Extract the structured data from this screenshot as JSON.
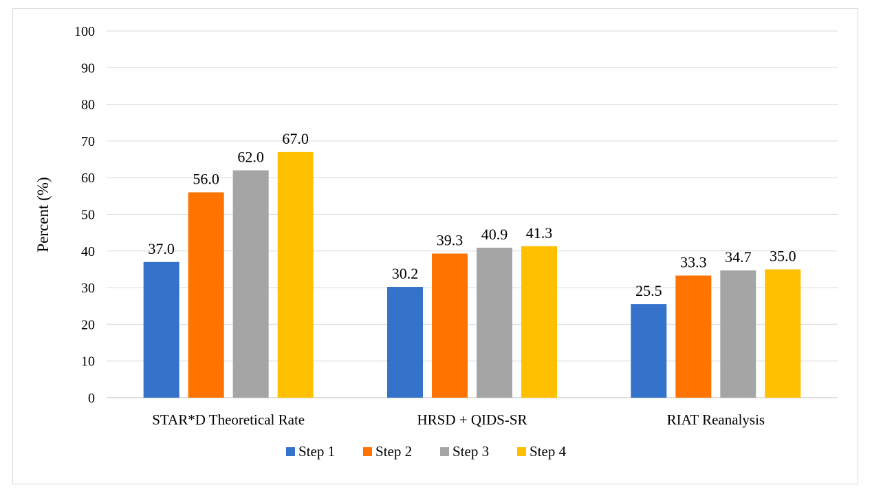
{
  "chart_data": {
    "type": "bar",
    "title": "",
    "xlabel": "",
    "ylabel": "Percent (%)",
    "ylim": [
      0,
      100
    ],
    "yticks": [
      0,
      10,
      20,
      30,
      40,
      50,
      60,
      70,
      80,
      90,
      100
    ],
    "grid": true,
    "legend_position": "bottom",
    "categories": [
      "STAR*D Theoretical Rate",
      "HRSD + QIDS-SR",
      "RIAT Reanalysis"
    ],
    "series": [
      {
        "name": "Step 1",
        "color": "#3473C9",
        "values": [
          37.0,
          30.2,
          25.5
        ],
        "labels": [
          "37.0",
          "30.2",
          "25.5"
        ]
      },
      {
        "name": "Step 2",
        "color": "#FF7300",
        "values": [
          56.0,
          39.3,
          33.3
        ],
        "labels": [
          "56.0",
          "39.3",
          "33.3"
        ]
      },
      {
        "name": "Step 3",
        "color": "#A5A5A5",
        "values": [
          62.0,
          40.9,
          34.7
        ],
        "labels": [
          "62.0",
          "40.9",
          "34.7"
        ]
      },
      {
        "name": "Step 4",
        "color": "#FFC000",
        "values": [
          67.0,
          41.3,
          35.0
        ],
        "labels": [
          "67.0",
          "41.3",
          "35.0"
        ]
      }
    ]
  }
}
